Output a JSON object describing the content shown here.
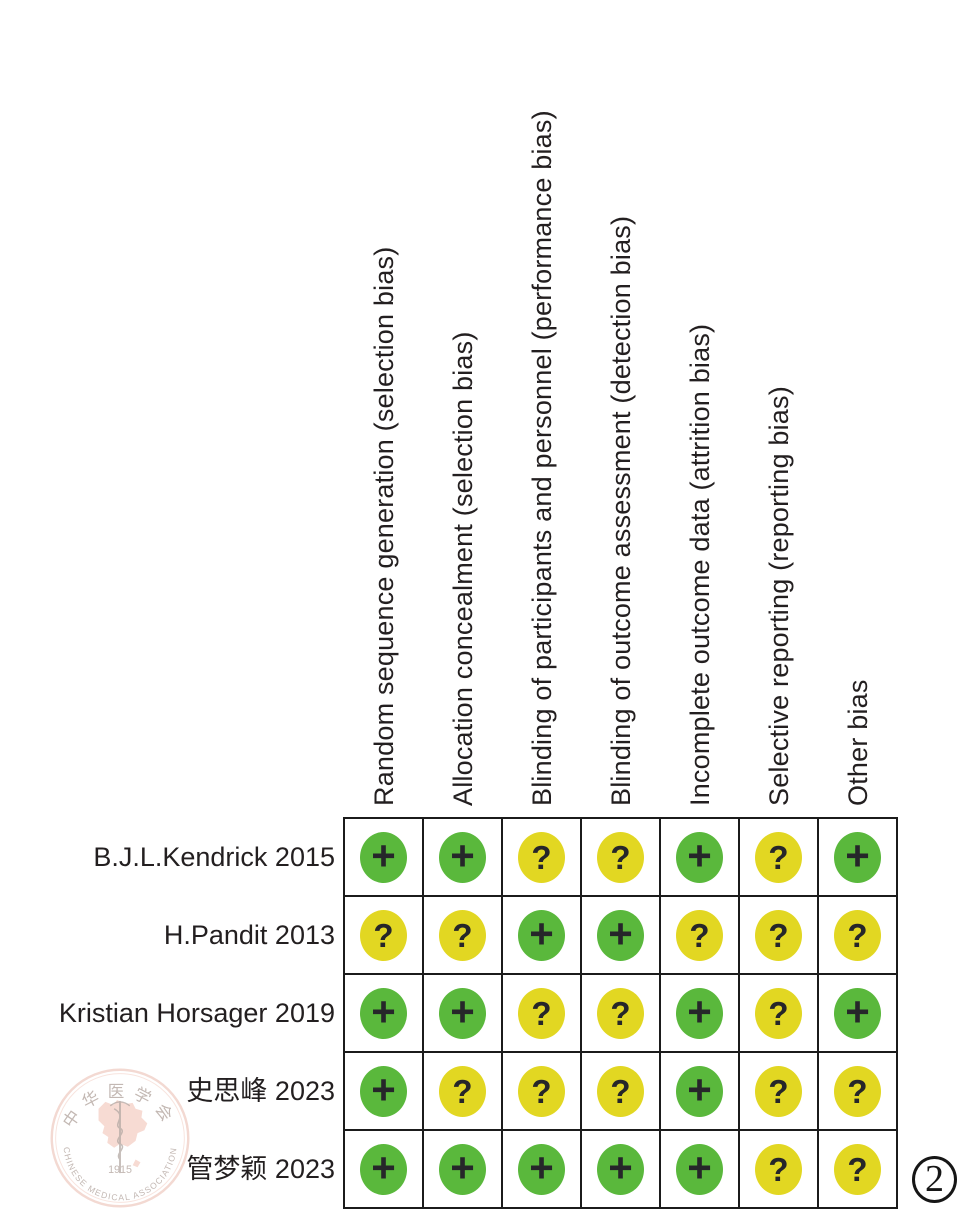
{
  "figure": {
    "number": "2"
  },
  "chart_data": {
    "type": "table",
    "columns": [
      "Random sequence generation (selection bias)",
      "Allocation concealment (selection bias)",
      "Blinding of participants and personnel (performance bias)",
      "Blinding of outcome assessment (detection bias)",
      "Incomplete outcome data (attrition bias)",
      "Selective reporting (reporting bias)",
      "Other bias"
    ],
    "rows": [
      {
        "study": "B.J.L.Kendrick 2015",
        "judgements": [
          "+",
          "+",
          "?",
          "?",
          "+",
          "?",
          "+"
        ]
      },
      {
        "study": "H.Pandit 2013",
        "judgements": [
          "?",
          "?",
          "+",
          "+",
          "?",
          "?",
          "?"
        ]
      },
      {
        "study": "Kristian Horsager 2019",
        "judgements": [
          "+",
          "+",
          "?",
          "?",
          "+",
          "?",
          "+"
        ]
      },
      {
        "study": "史思峰 2023",
        "judgements": [
          "+",
          "?",
          "?",
          "?",
          "+",
          "?",
          "?"
        ]
      },
      {
        "study": "管梦颖 2023",
        "judgements": [
          "+",
          "+",
          "+",
          "+",
          "+",
          "?",
          "?"
        ]
      }
    ],
    "symbol_colors": {
      "+": "#5ab83c",
      "?": "#e2d722"
    },
    "symbol_ink": "#26262a",
    "grid_line_color": "#1b1b1b"
  },
  "watermark": {
    "top_text": "中华医学会",
    "bottom_text": "CHINESE MEDICAL ASSOCIATION",
    "year": "1915"
  }
}
